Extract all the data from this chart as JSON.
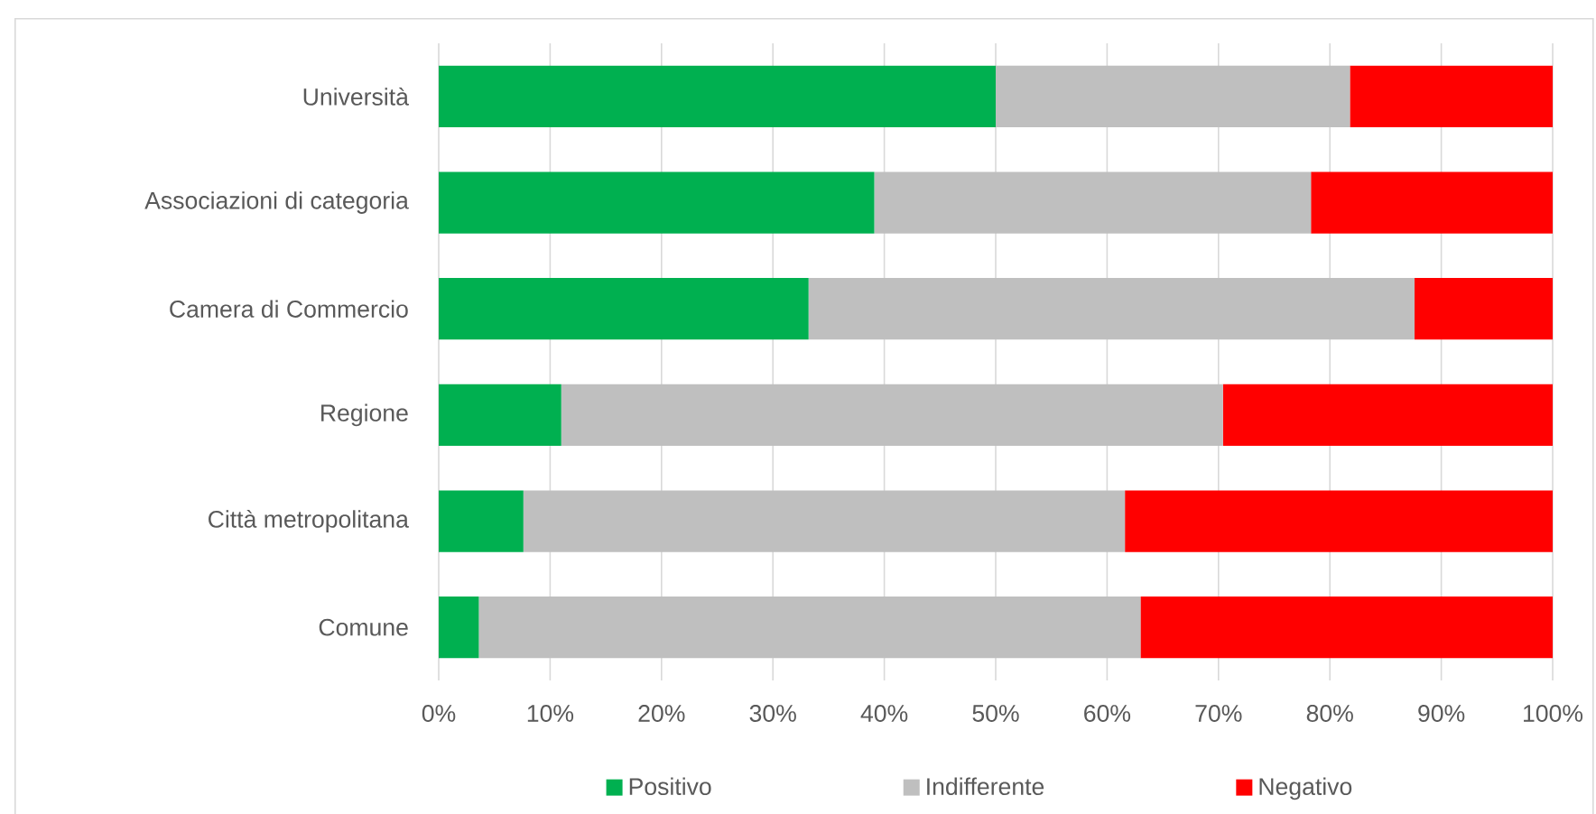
{
  "chart_data": {
    "type": "bar",
    "orientation": "horizontal",
    "stacked": true,
    "categories": [
      "Università",
      "Associazioni di categoria",
      "Camera di Commercio",
      "Regione",
      "Città metropolitana",
      "Comune"
    ],
    "series": [
      {
        "name": "Positivo",
        "color": "#00b050",
        "values": [
          50.0,
          39.1,
          33.2,
          11.0,
          7.6,
          3.6
        ]
      },
      {
        "name": "Indifferente",
        "color": "#bfbfbf",
        "values": [
          31.8,
          39.2,
          54.4,
          59.4,
          54.0,
          59.4
        ]
      },
      {
        "name": "Negativo",
        "color": "#ff0000",
        "values": [
          18.2,
          21.7,
          12.4,
          29.6,
          38.4,
          37.0
        ]
      }
    ],
    "xlim": [
      0,
      100
    ],
    "xticks": [
      {
        "value": 0,
        "label": "0%"
      },
      {
        "value": 10,
        "label": "10%"
      },
      {
        "value": 20,
        "label": "20%"
      },
      {
        "value": 30,
        "label": "30%"
      },
      {
        "value": 40,
        "label": "40%"
      },
      {
        "value": 50,
        "label": "50%"
      },
      {
        "value": 60,
        "label": "60%"
      },
      {
        "value": 70,
        "label": "70%"
      },
      {
        "value": 80,
        "label": "80%"
      },
      {
        "value": 90,
        "label": "90%"
      },
      {
        "value": 100,
        "label": "100%"
      }
    ],
    "grid": "x",
    "legend": "bottom"
  }
}
